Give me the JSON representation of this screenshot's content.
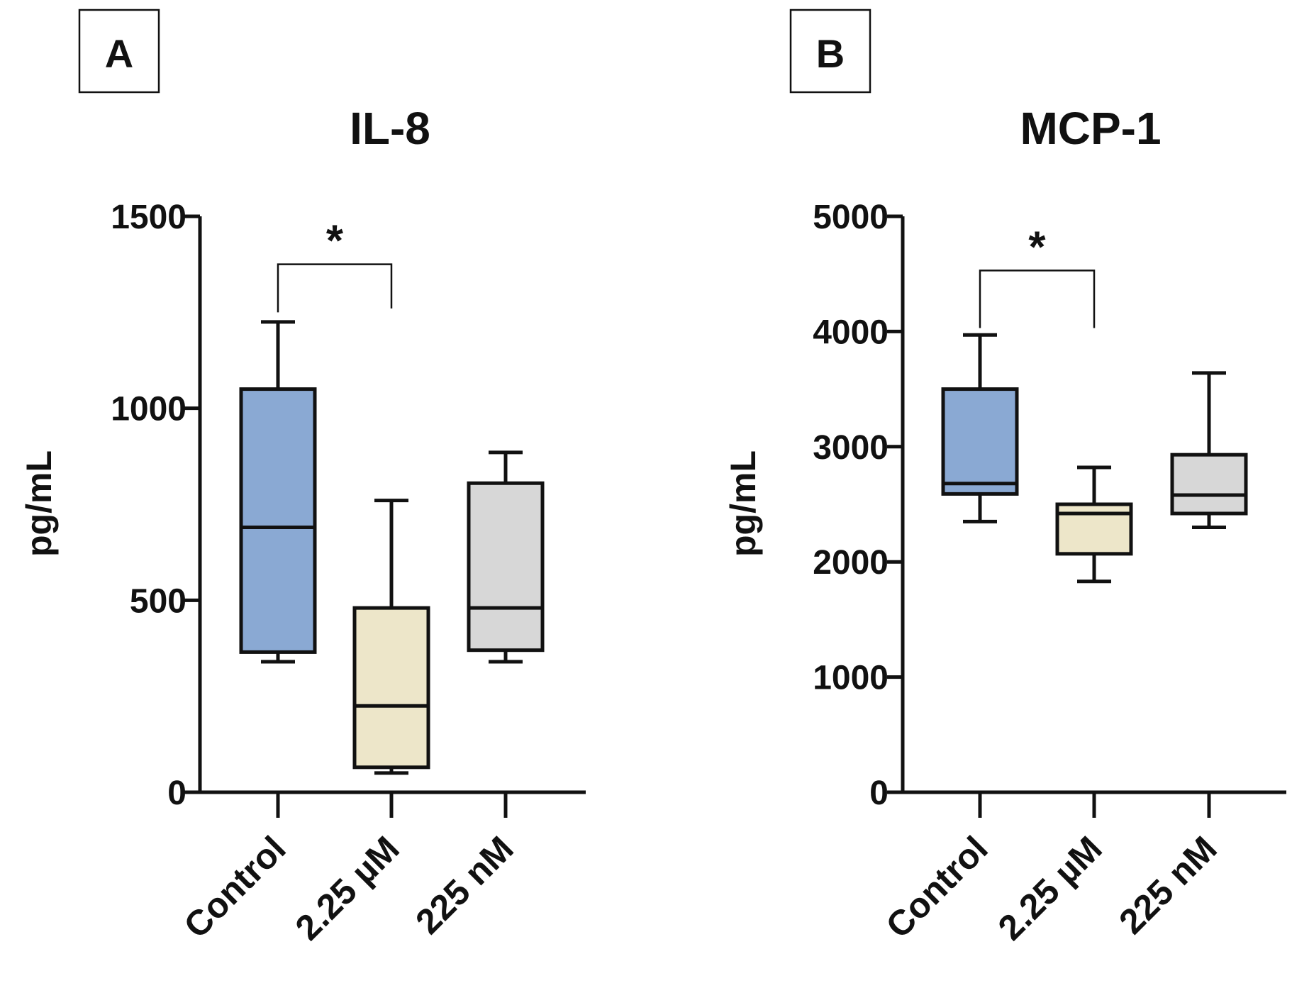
{
  "chart_data": [
    {
      "type": "box",
      "panel_label": "A",
      "title": "IL-8",
      "ylabel": "pg/mL",
      "xlabel": "",
      "ylim": [
        0,
        1500
      ],
      "yticks": [
        0,
        500,
        1000,
        1500
      ],
      "ytick_labels": [
        "0",
        "500",
        "1000",
        "1500"
      ],
      "categories": [
        "Control",
        "2.25 µM",
        "225 nM"
      ],
      "boxes": [
        {
          "name": "Control",
          "min": 340,
          "q1": 365,
          "median": 690,
          "q3": 1050,
          "max": 1225,
          "color": "#8aa9d3"
        },
        {
          "name": "2.25 µM",
          "min": 50,
          "q1": 65,
          "median": 225,
          "q3": 480,
          "max": 760,
          "color": "#ede6c9"
        },
        {
          "name": "225 nM",
          "min": 340,
          "q1": 370,
          "median": 480,
          "q3": 805,
          "max": 885,
          "color": "#d7d7d7"
        }
      ],
      "significance": {
        "from": 0,
        "to": 1,
        "label": "*",
        "y_top": 1375,
        "left_end": 1250,
        "right_end": 1260
      }
    },
    {
      "type": "box",
      "panel_label": "B",
      "title": "MCP-1",
      "ylabel": "pg/mL",
      "xlabel": "",
      "ylim": [
        0,
        5000
      ],
      "yticks": [
        0,
        1000,
        2000,
        3000,
        4000,
        5000
      ],
      "ytick_labels": [
        "0",
        "1000",
        "2000",
        "3000",
        "4000",
        "5000"
      ],
      "categories": [
        "Control",
        "2.25 µM",
        "225 nM"
      ],
      "boxes": [
        {
          "name": "Control",
          "min": 2350,
          "q1": 2590,
          "median": 2680,
          "q3": 3500,
          "max": 3970,
          "color": "#8aa9d3"
        },
        {
          "name": "2.25 µM",
          "min": 1830,
          "q1": 2070,
          "median": 2420,
          "q3": 2500,
          "max": 2820,
          "color": "#ede6c9"
        },
        {
          "name": "225 nM",
          "min": 2300,
          "q1": 2420,
          "median": 2580,
          "q3": 2930,
          "max": 3640,
          "color": "#d7d7d7"
        }
      ],
      "significance": {
        "from": 0,
        "to": 1,
        "label": "*",
        "y_top": 4530,
        "left_end": 4030,
        "right_end": 4030
      }
    }
  ]
}
